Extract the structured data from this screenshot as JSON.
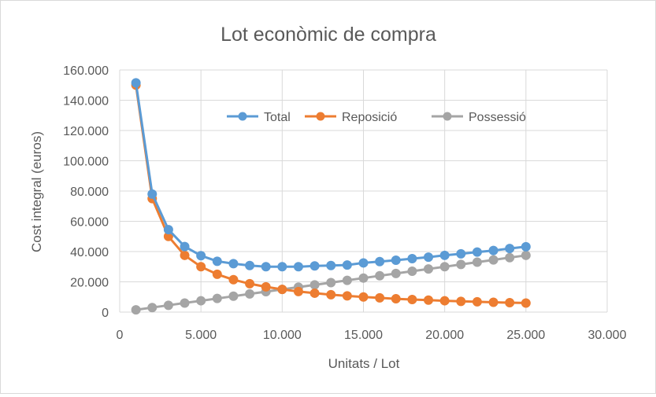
{
  "chart_data": {
    "type": "line",
    "title": "Lot econòmic de compra",
    "xlabel": "Unitats / Lot",
    "ylabel": "Cost integral (euros)",
    "xlim": [
      0,
      30000
    ],
    "ylim": [
      0,
      160000
    ],
    "x_ticks": [
      0,
      5000,
      10000,
      15000,
      20000,
      25000,
      30000
    ],
    "x_tick_labels": [
      "0",
      "5.000",
      "10.000",
      "15.000",
      "20.000",
      "25.000",
      "30.000"
    ],
    "y_ticks": [
      0,
      20000,
      40000,
      60000,
      80000,
      100000,
      120000,
      140000,
      160000
    ],
    "y_tick_labels": [
      "0",
      "20.000",
      "40.000",
      "60.000",
      "80.000",
      "100.000",
      "120.000",
      "140.000",
      "160.000"
    ],
    "grid": true,
    "legend_position": "top-right",
    "x": [
      1000,
      2000,
      3000,
      4000,
      5000,
      6000,
      7000,
      8000,
      9000,
      10000,
      11000,
      12000,
      13000,
      14000,
      15000,
      16000,
      17000,
      18000,
      19000,
      20000,
      21000,
      22000,
      23000,
      24000,
      25000
    ],
    "series": [
      {
        "name": "Total",
        "color": "#5b9bd5",
        "values": [
          151500,
          78000,
          54500,
          43300,
          37300,
          33600,
          32000,
          30800,
          30000,
          30000,
          30000,
          30500,
          30800,
          31100,
          32500,
          33400,
          34300,
          35300,
          36300,
          37500,
          38500,
          39700,
          40700,
          42000,
          43200
        ]
      },
      {
        "name": "Reposició",
        "color": "#ed7d31",
        "values": [
          150000,
          75000,
          50000,
          37500,
          30000,
          25000,
          21400,
          18750,
          16700,
          15000,
          13600,
          12500,
          11500,
          10700,
          10000,
          9400,
          8800,
          8300,
          7900,
          7500,
          7100,
          6800,
          6500,
          6250,
          6000
        ]
      },
      {
        "name": "Possessió",
        "color": "#a5a5a5",
        "values": [
          1500,
          3000,
          4500,
          6000,
          7500,
          9000,
          10500,
          12000,
          13500,
          15000,
          16500,
          18000,
          19500,
          21000,
          22500,
          24000,
          25500,
          27000,
          28500,
          30000,
          31500,
          33000,
          34500,
          36000,
          37500
        ]
      }
    ]
  }
}
